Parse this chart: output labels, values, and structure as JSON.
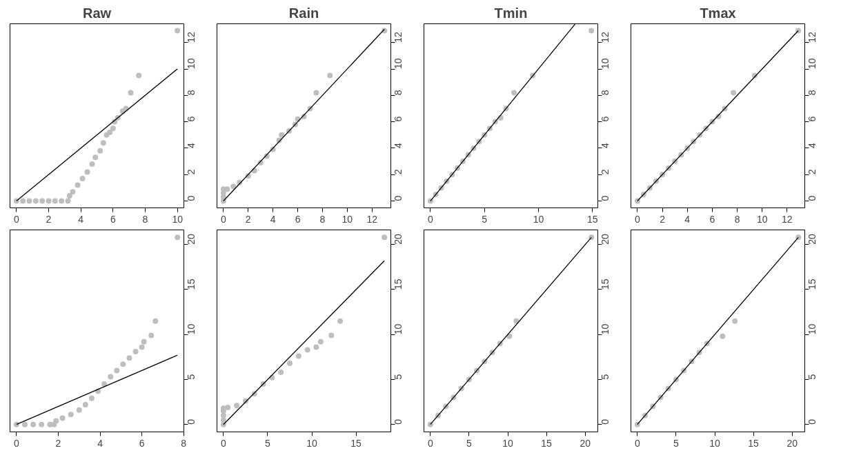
{
  "chart_data": [
    {
      "type": "scatter",
      "title": "Raw",
      "xlim": [
        -0.4,
        10.4
      ],
      "ylim": [
        -0.52,
        13.42
      ],
      "xticks": [
        0,
        2,
        4,
        6,
        8,
        10
      ],
      "yticks": [
        0,
        2,
        4,
        6,
        8,
        10,
        12
      ],
      "grid": false,
      "series": [
        {
          "marker": "circle",
          "color": "#bebebe",
          "x": [
            0,
            0.4,
            0.8,
            1.2,
            1.6,
            2.0,
            2.4,
            2.8,
            3.2,
            3.3,
            3.5,
            3.8,
            4.1,
            4.4,
            4.7,
            4.9,
            5.2,
            5.4,
            5.6,
            5.8,
            6.0,
            6.1,
            6.3,
            6.6,
            6.8,
            7.1,
            7.6,
            10
          ],
          "values": [
            0,
            0,
            0,
            0,
            0,
            0,
            0,
            0,
            0,
            0.4,
            0.7,
            1.2,
            1.7,
            2.2,
            2.8,
            3.3,
            3.8,
            4.4,
            5.0,
            5.2,
            5.5,
            6.0,
            6.3,
            6.8,
            7.0,
            8.2,
            9.5,
            12.9
          ]
        },
        {
          "type": "line",
          "color": "#000000",
          "x": [
            0,
            10
          ],
          "values": [
            0,
            10
          ]
        }
      ]
    },
    {
      "type": "scatter",
      "title": "Rain",
      "xlim": [
        -0.52,
        13.52
      ],
      "ylim": [
        -0.52,
        13.42
      ],
      "xticks": [
        0,
        2,
        4,
        6,
        8,
        10,
        12
      ],
      "yticks": [
        0,
        2,
        4,
        6,
        8,
        10,
        12
      ],
      "grid": false,
      "series": [
        {
          "marker": "circle",
          "color": "#bebebe",
          "x": [
            0,
            0,
            0,
            0,
            0.3,
            0.8,
            1.3,
            2.0,
            2.5,
            3.0,
            3.5,
            4.0,
            4.5,
            4.7,
            5.3,
            5.8,
            6.0,
            6.5,
            7.0,
            7.5,
            8.6,
            13
          ],
          "values": [
            0,
            0.3,
            0.6,
            0.9,
            0.9,
            1.1,
            1.4,
            1.9,
            2.3,
            2.9,
            3.4,
            3.9,
            4.6,
            5.0,
            5.3,
            5.8,
            6.2,
            6.4,
            7.0,
            8.2,
            9.5,
            12.9
          ]
        },
        {
          "type": "line",
          "color": "#000000",
          "x": [
            0,
            13
          ],
          "values": [
            0,
            13
          ]
        }
      ]
    },
    {
      "type": "scatter",
      "title": "Tmin",
      "xlim": [
        -0.6,
        15.5
      ],
      "ylim": [
        -0.52,
        13.42
      ],
      "xticks": [
        0,
        5,
        10,
        15
      ],
      "yticks": [
        0,
        2,
        4,
        6,
        8,
        10,
        12
      ],
      "grid": false,
      "series": [
        {
          "marker": "circle",
          "color": "#bebebe",
          "x": [
            0,
            0.5,
            1,
            1.5,
            2,
            2.5,
            3,
            3.5,
            4,
            4.5,
            5,
            5.5,
            6,
            6.5,
            7,
            7.75,
            9.47,
            14.9
          ],
          "values": [
            0,
            0.5,
            1,
            1.5,
            2,
            2.5,
            3,
            3.5,
            4,
            4.5,
            5,
            5.5,
            6,
            6.3,
            7,
            8.2,
            9.5,
            12.9
          ]
        },
        {
          "type": "line",
          "color": "#000000",
          "x": [
            0,
            13.4
          ],
          "values": [
            0,
            13.4
          ]
        }
      ]
    },
    {
      "type": "scatter",
      "title": "Tmax",
      "xlim": [
        -0.52,
        13.42
      ],
      "ylim": [
        -0.52,
        13.42
      ],
      "xticks": [
        0,
        2,
        4,
        6,
        8,
        10,
        12
      ],
      "yticks": [
        0,
        2,
        4,
        6,
        8,
        10,
        12
      ],
      "grid": false,
      "series": [
        {
          "marker": "circle",
          "color": "#bebebe",
          "x": [
            0,
            0.5,
            1,
            1.5,
            2,
            2.5,
            3,
            3.5,
            4,
            4.5,
            5,
            5.5,
            6,
            6.5,
            7,
            7.7,
            9.4,
            12.9
          ],
          "values": [
            0,
            0.5,
            1,
            1.5,
            2,
            2.5,
            3,
            3.5,
            4,
            4.5,
            5,
            5.5,
            6,
            6.4,
            7,
            8.2,
            9.5,
            12.9
          ]
        },
        {
          "type": "line",
          "color": "#000000",
          "x": [
            0,
            12.9
          ],
          "values": [
            0,
            12.9
          ]
        }
      ]
    },
    {
      "type": "scatter",
      "xlim": [
        -0.31,
        8.01
      ],
      "ylim": [
        -0.83,
        21.63
      ],
      "xticks": [
        0,
        2,
        4,
        6,
        8
      ],
      "yticks": [
        0,
        5,
        10,
        15,
        20
      ],
      "grid": false,
      "series": [
        {
          "marker": "circle",
          "color": "#bebebe",
          "x": [
            0,
            0.4,
            0.8,
            1.2,
            1.6,
            1.8,
            1.9,
            2.2,
            2.6,
            3.0,
            3.3,
            3.6,
            3.9,
            4.2,
            4.5,
            4.8,
            5.1,
            5.4,
            5.7,
            6.0,
            6.1,
            6.45,
            6.65,
            7.7
          ],
          "values": [
            0,
            0,
            0,
            0,
            0,
            0,
            0.4,
            0.7,
            1.1,
            1.6,
            2.2,
            2.9,
            3.7,
            4.5,
            5.3,
            6.0,
            6.7,
            7.4,
            8.1,
            8.6,
            9.2,
            9.9,
            11.5,
            20.8
          ]
        },
        {
          "type": "line",
          "color": "#000000",
          "x": [
            0,
            7.7
          ],
          "values": [
            0,
            7.7
          ]
        }
      ]
    },
    {
      "type": "scatter",
      "xlim": [
        -0.73,
        18.93
      ],
      "ylim": [
        -0.83,
        21.63
      ],
      "xticks": [
        0,
        5,
        10,
        15
      ],
      "yticks": [
        0,
        5,
        10,
        15,
        20
      ],
      "grid": false,
      "series": [
        {
          "marker": "circle",
          "color": "#bebebe",
          "x": [
            0,
            0,
            0,
            0,
            0,
            0.5,
            1.5,
            2.5,
            3.5,
            4.5,
            5.5,
            6.5,
            7.5,
            8.5,
            9.5,
            10.5,
            11,
            12.2,
            13.2,
            18.2
          ],
          "values": [
            0,
            0.5,
            1.0,
            1.5,
            1.8,
            1.9,
            2.1,
            2.6,
            3.4,
            4.5,
            5.2,
            5.8,
            6.8,
            7.6,
            8.3,
            8.6,
            9.2,
            9.9,
            11.5,
            20.8
          ]
        },
        {
          "type": "line",
          "color": "#000000",
          "x": [
            0,
            18.2
          ],
          "values": [
            0,
            18.2
          ]
        }
      ]
    },
    {
      "type": "scatter",
      "xlim": [
        -0.83,
        21.63
      ],
      "ylim": [
        -0.83,
        21.63
      ],
      "xticks": [
        0,
        5,
        10,
        15,
        20
      ],
      "yticks": [
        0,
        5,
        10,
        15,
        20
      ],
      "grid": false,
      "series": [
        {
          "marker": "circle",
          "color": "#bebebe",
          "x": [
            0,
            1,
            2,
            3,
            4,
            5,
            6,
            7,
            8,
            9,
            10.2,
            11.1,
            20.8
          ],
          "values": [
            0,
            1,
            2,
            3,
            4,
            5,
            6,
            7,
            8,
            9,
            9.8,
            11.5,
            20.8
          ]
        },
        {
          "type": "line",
          "color": "#000000",
          "x": [
            0,
            20.8
          ],
          "values": [
            0,
            20.8
          ]
        }
      ]
    },
    {
      "type": "scatter",
      "xlim": [
        -0.83,
        21.63
      ],
      "ylim": [
        -0.83,
        21.63
      ],
      "xticks": [
        0,
        5,
        10,
        15,
        20
      ],
      "yticks": [
        0,
        5,
        10,
        15,
        20
      ],
      "grid": false,
      "series": [
        {
          "marker": "circle",
          "color": "#bebebe",
          "x": [
            0,
            1,
            2,
            3,
            4,
            5,
            6,
            7,
            8,
            9,
            11,
            12.6,
            20.8
          ],
          "values": [
            0,
            1,
            2,
            3,
            4,
            5,
            6,
            7,
            8,
            9,
            9.8,
            11.5,
            20.8
          ]
        },
        {
          "type": "line",
          "color": "#000000",
          "x": [
            0,
            20.8
          ],
          "values": [
            0,
            20.8
          ]
        }
      ]
    }
  ]
}
